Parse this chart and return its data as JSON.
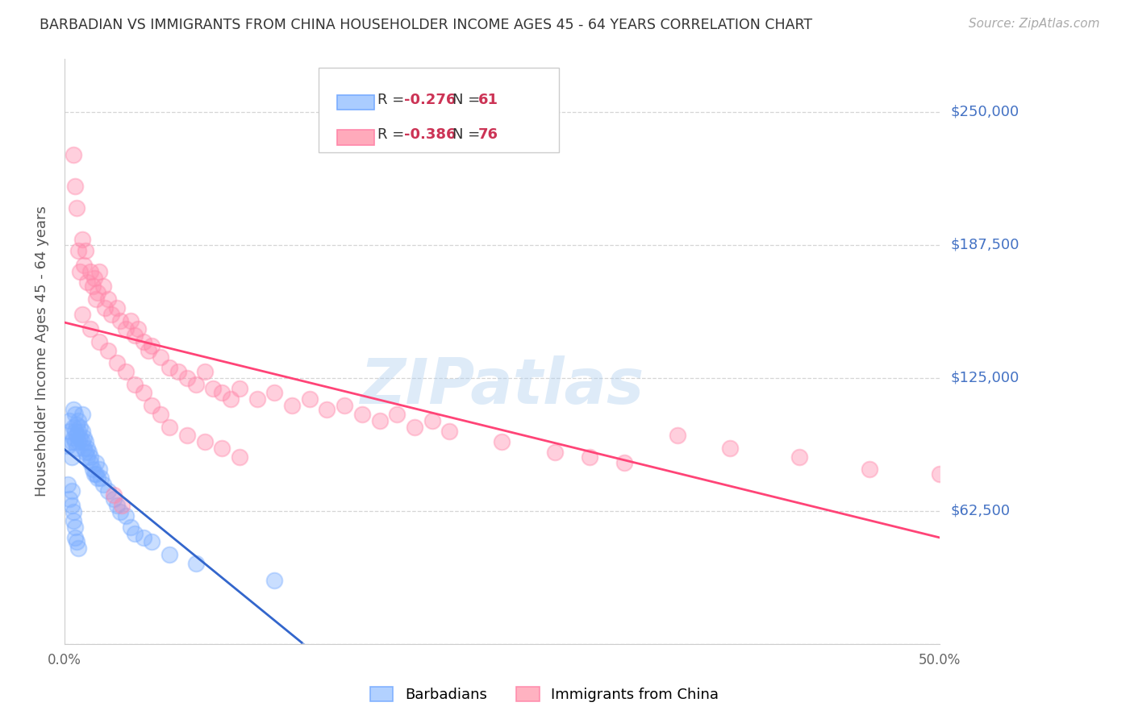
{
  "title": "BARBADIAN VS IMMIGRANTS FROM CHINA HOUSEHOLDER INCOME AGES 45 - 64 YEARS CORRELATION CHART",
  "source": "Source: ZipAtlas.com",
  "ylabel": "Householder Income Ages 45 - 64 years",
  "xmin": 0.0,
  "xmax": 0.5,
  "ymin": 0,
  "ymax": 275000,
  "yticks": [
    0,
    62500,
    125000,
    187500,
    250000
  ],
  "ytick_labels": [
    "",
    "$62,500",
    "$125,000",
    "$187,500",
    "$250,000"
  ],
  "xticks": [
    0.0,
    0.1,
    0.2,
    0.3,
    0.4,
    0.5
  ],
  "xtick_labels": [
    "0.0%",
    "",
    "",
    "",
    "",
    "50.0%"
  ],
  "background_color": "#ffffff",
  "grid_color": "#cccccc",
  "title_color": "#333333",
  "source_color": "#aaaaaa",
  "ylabel_color": "#555555",
  "legend_label1": "Barbadians",
  "legend_label2": "Immigrants from China",
  "scatter1_color": "#7aadff",
  "scatter2_color": "#ff88aa",
  "line1_color": "#3366cc",
  "line2_color": "#ff4477",
  "watermark": "ZIPatlas",
  "barbadians_x": [
    0.002,
    0.003,
    0.003,
    0.004,
    0.004,
    0.005,
    0.005,
    0.005,
    0.006,
    0.006,
    0.006,
    0.007,
    0.007,
    0.007,
    0.008,
    0.008,
    0.008,
    0.009,
    0.009,
    0.01,
    0.01,
    0.01,
    0.011,
    0.011,
    0.012,
    0.012,
    0.013,
    0.013,
    0.014,
    0.015,
    0.015,
    0.016,
    0.017,
    0.018,
    0.018,
    0.019,
    0.02,
    0.021,
    0.022,
    0.025,
    0.028,
    0.03,
    0.032,
    0.035,
    0.038,
    0.04,
    0.045,
    0.05,
    0.06,
    0.075,
    0.002,
    0.003,
    0.004,
    0.004,
    0.005,
    0.005,
    0.006,
    0.006,
    0.007,
    0.008,
    0.12
  ],
  "barbadians_y": [
    93000,
    100000,
    105000,
    95000,
    88000,
    110000,
    102000,
    97000,
    108000,
    100000,
    95000,
    103000,
    98000,
    92000,
    105000,
    100000,
    95000,
    102000,
    97000,
    108000,
    100000,
    95000,
    97000,
    92000,
    95000,
    90000,
    92000,
    88000,
    90000,
    88000,
    85000,
    82000,
    80000,
    85000,
    80000,
    78000,
    82000,
    78000,
    75000,
    72000,
    68000,
    65000,
    62000,
    60000,
    55000,
    52000,
    50000,
    48000,
    42000,
    38000,
    75000,
    68000,
    72000,
    65000,
    62000,
    58000,
    55000,
    50000,
    48000,
    45000,
    30000
  ],
  "china_x": [
    0.005,
    0.006,
    0.007,
    0.008,
    0.009,
    0.01,
    0.011,
    0.012,
    0.013,
    0.015,
    0.016,
    0.017,
    0.018,
    0.019,
    0.02,
    0.022,
    0.023,
    0.025,
    0.027,
    0.03,
    0.032,
    0.035,
    0.038,
    0.04,
    0.042,
    0.045,
    0.048,
    0.05,
    0.055,
    0.06,
    0.065,
    0.07,
    0.075,
    0.08,
    0.085,
    0.09,
    0.095,
    0.1,
    0.11,
    0.12,
    0.13,
    0.14,
    0.15,
    0.16,
    0.17,
    0.18,
    0.19,
    0.2,
    0.21,
    0.22,
    0.01,
    0.015,
    0.02,
    0.025,
    0.03,
    0.035,
    0.04,
    0.045,
    0.05,
    0.055,
    0.06,
    0.07,
    0.08,
    0.09,
    0.1,
    0.35,
    0.38,
    0.42,
    0.46,
    0.5,
    0.25,
    0.28,
    0.3,
    0.32,
    0.028,
    0.033
  ],
  "china_y": [
    230000,
    215000,
    205000,
    185000,
    175000,
    190000,
    178000,
    185000,
    170000,
    175000,
    168000,
    172000,
    162000,
    165000,
    175000,
    168000,
    158000,
    162000,
    155000,
    158000,
    152000,
    148000,
    152000,
    145000,
    148000,
    142000,
    138000,
    140000,
    135000,
    130000,
    128000,
    125000,
    122000,
    128000,
    120000,
    118000,
    115000,
    120000,
    115000,
    118000,
    112000,
    115000,
    110000,
    112000,
    108000,
    105000,
    108000,
    102000,
    105000,
    100000,
    155000,
    148000,
    142000,
    138000,
    132000,
    128000,
    122000,
    118000,
    112000,
    108000,
    102000,
    98000,
    95000,
    92000,
    88000,
    98000,
    92000,
    88000,
    82000,
    80000,
    95000,
    90000,
    88000,
    85000,
    70000,
    65000
  ]
}
